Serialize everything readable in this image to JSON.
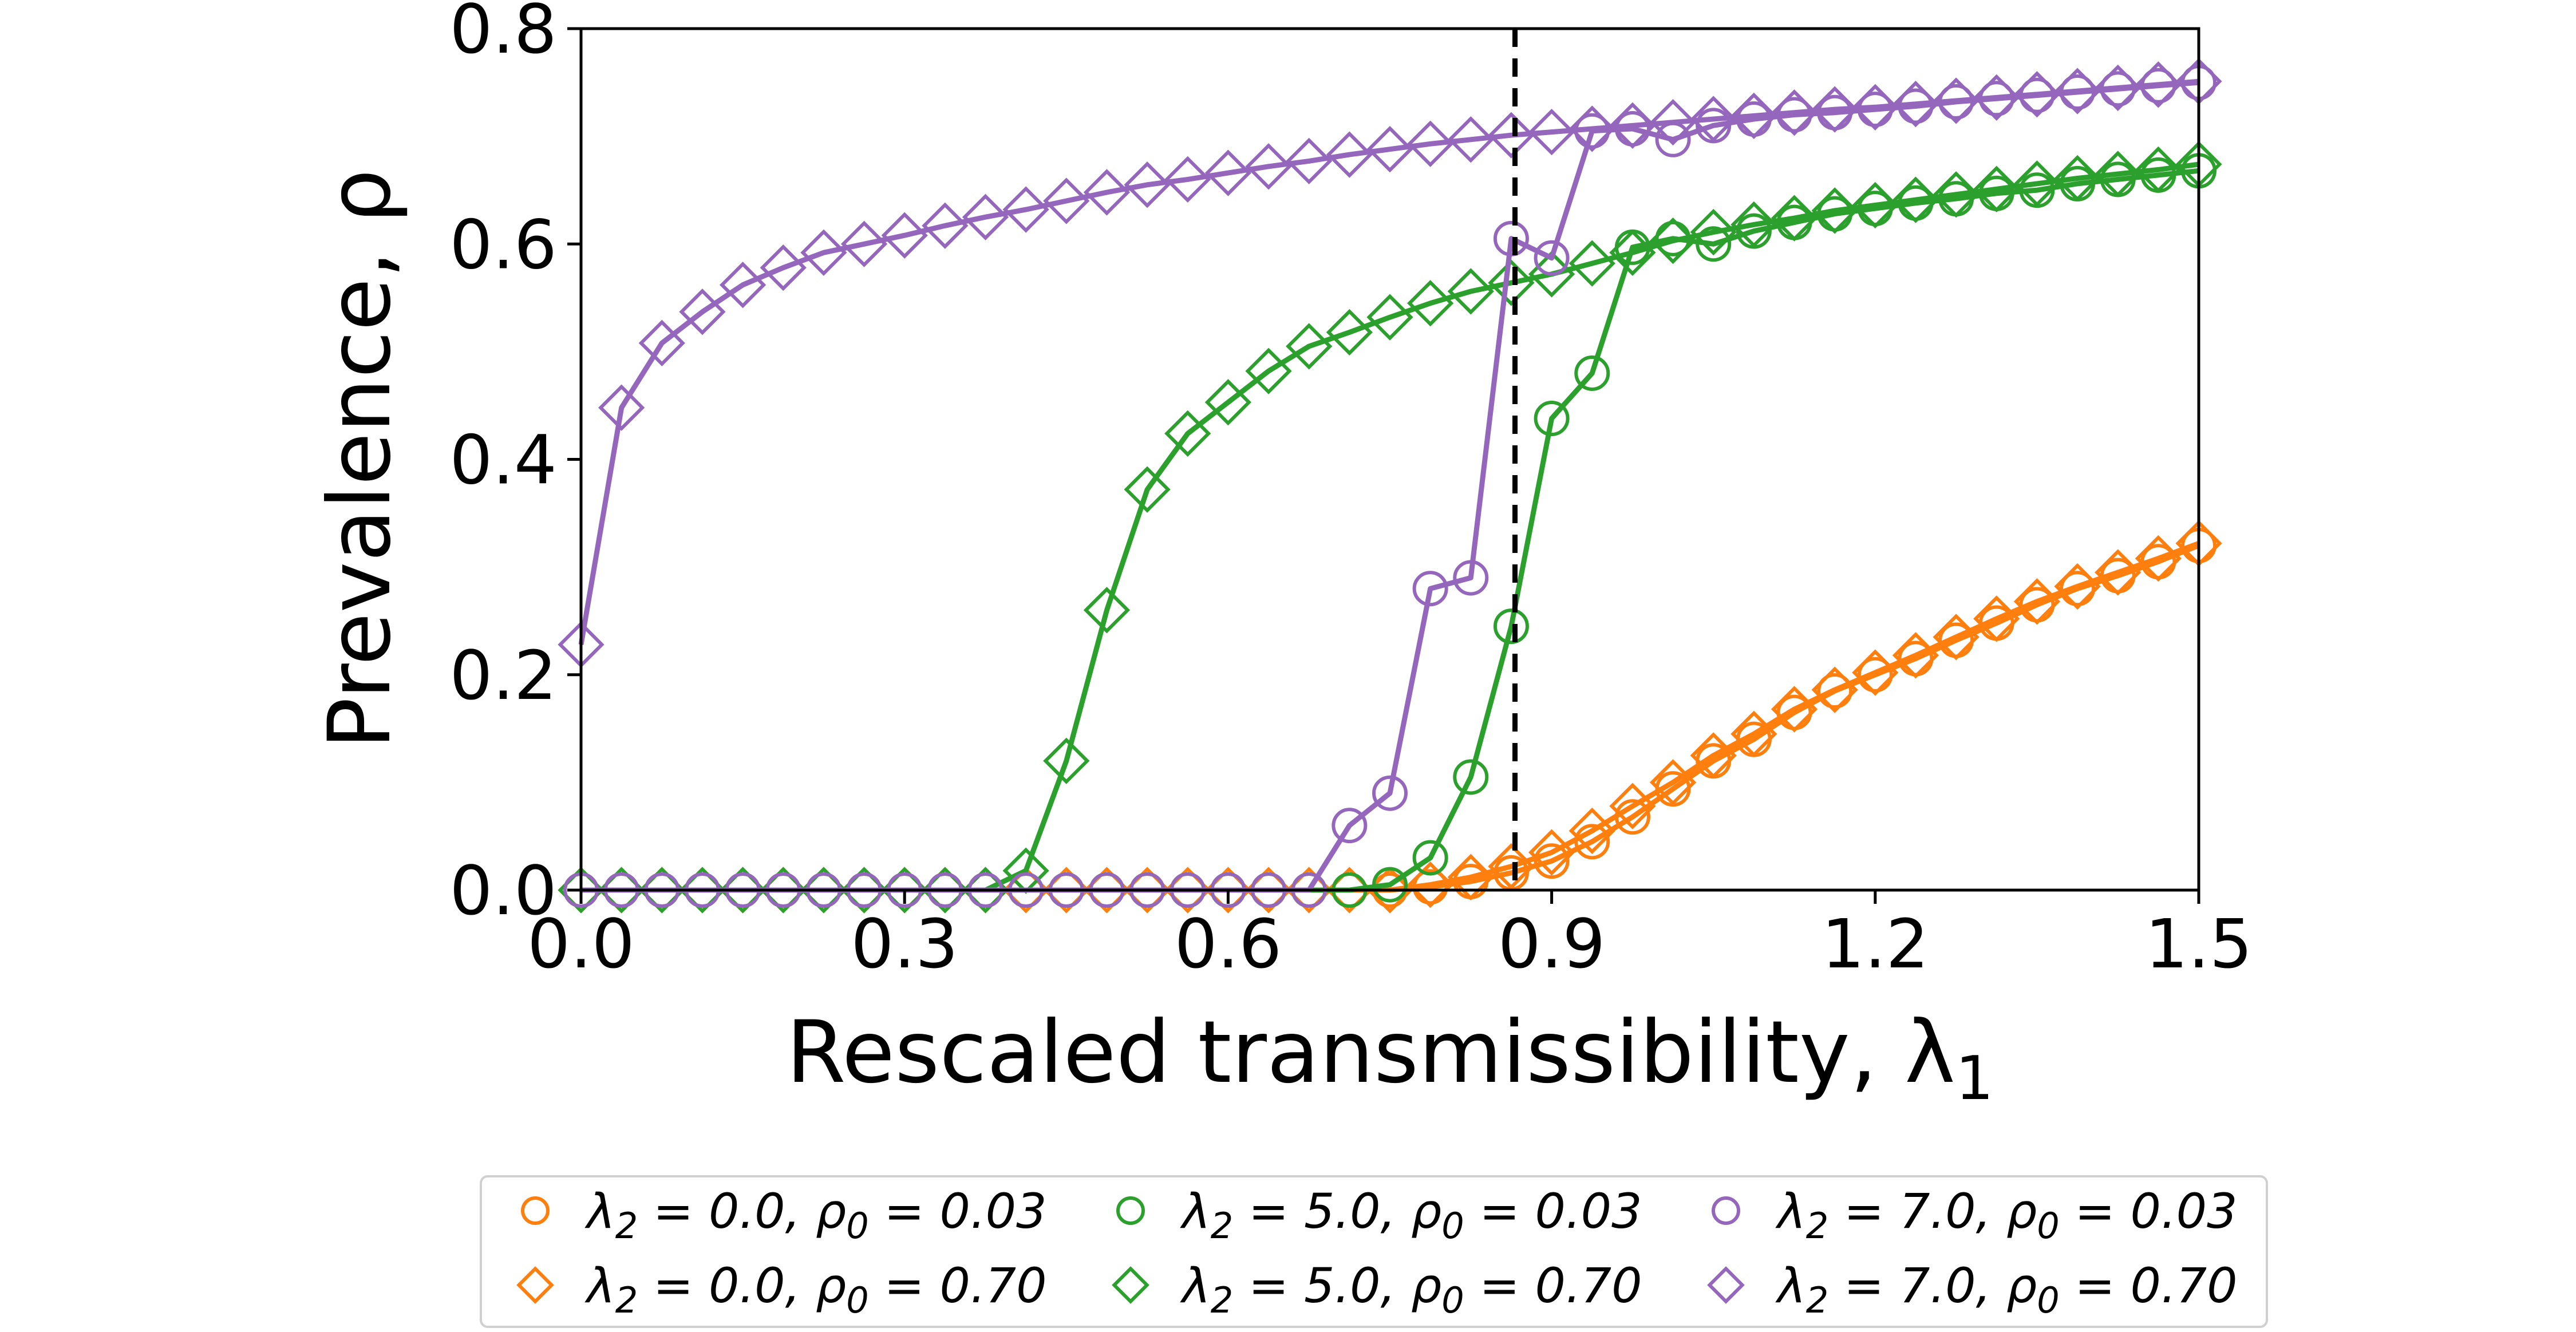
{
  "chart_data": {
    "type": "line",
    "title": "",
    "xlabel": "Rescaled transmissibility, λ",
    "xlabel_sub": "1",
    "ylabel": "Prevalence, ρ",
    "xlim": [
      0.0,
      1.5
    ],
    "ylim": [
      0.0,
      0.8
    ],
    "xticks": [
      0.0,
      0.3,
      0.6,
      0.9,
      1.2,
      1.5
    ],
    "xtick_labels": [
      "0.0",
      "0.3",
      "0.6",
      "0.9",
      "1.2",
      "1.5"
    ],
    "yticks": [
      0.0,
      0.2,
      0.4,
      0.6,
      0.8
    ],
    "ytick_labels": [
      "0.0",
      "0.2",
      "0.4",
      "0.6",
      "0.8"
    ],
    "grid": false,
    "legend_position": "bottom-center",
    "reference_lines": [
      {
        "orientation": "vertical",
        "x": 0.866,
        "style": "dashed",
        "color": "#000000"
      }
    ],
    "x": [
      0.0,
      0.0375,
      0.075,
      0.1125,
      0.15,
      0.1875,
      0.225,
      0.2625,
      0.3,
      0.3375,
      0.375,
      0.4125,
      0.45,
      0.4875,
      0.525,
      0.5625,
      0.6,
      0.6375,
      0.675,
      0.7125,
      0.75,
      0.7875,
      0.825,
      0.8625,
      0.9,
      0.9375,
      0.975,
      1.0125,
      1.05,
      1.0875,
      1.125,
      1.1625,
      1.2,
      1.2375,
      1.275,
      1.3125,
      1.35,
      1.3875,
      1.425,
      1.4625,
      1.5
    ],
    "series": [
      {
        "name": "λ2 = 0.0, ρ0 = 0.03",
        "label_parts": {
          "l": "λ",
          "lsub": "2",
          "lval": " = 0.0, ",
          "r": "ρ",
          "rsub": "0",
          "rval": " = 0.03"
        },
        "color": "#ff7f0e",
        "marker": "circle",
        "values": [
          0.0,
          0.0,
          0.0,
          0.0,
          0.0,
          0.0,
          0.0,
          0.0,
          0.0,
          0.0,
          0.0,
          0.0,
          0.0,
          0.0,
          0.0,
          0.0,
          0.0,
          0.0,
          0.0,
          0.0,
          0.0,
          0.003,
          0.008,
          0.016,
          0.027,
          0.045,
          0.068,
          0.094,
          0.12,
          0.14,
          0.165,
          0.185,
          0.2,
          0.215,
          0.232,
          0.248,
          0.265,
          0.28,
          0.292,
          0.305,
          0.32
        ]
      },
      {
        "name": "λ2 = 0.0, ρ0 = 0.70",
        "label_parts": {
          "l": "λ",
          "lsub": "2",
          "lval": " = 0.0, ",
          "r": "ρ",
          "rsub": "0",
          "rval": " = 0.70"
        },
        "color": "#ff7f0e",
        "marker": "diamond",
        "values": [
          0.0,
          0.0,
          0.0,
          0.0,
          0.0,
          0.0,
          0.0,
          0.0,
          0.0,
          0.0,
          0.0,
          0.0,
          0.0,
          0.0,
          0.0,
          0.0,
          0.0,
          0.0,
          0.0,
          0.0,
          0.0,
          0.005,
          0.012,
          0.022,
          0.035,
          0.055,
          0.078,
          0.1,
          0.125,
          0.145,
          0.168,
          0.186,
          0.202,
          0.218,
          0.235,
          0.252,
          0.268,
          0.282,
          0.295,
          0.308,
          0.322
        ]
      },
      {
        "name": "λ2 = 5.0, ρ0 = 0.03",
        "label_parts": {
          "l": "λ",
          "lsub": "2",
          "lval": " = 5.0, ",
          "r": "ρ",
          "rsub": "0",
          "rval": " = 0.03"
        },
        "color": "#2ca02c",
        "marker": "circle",
        "values": [
          0.0,
          0.0,
          0.0,
          0.0,
          0.0,
          0.0,
          0.0,
          0.0,
          0.0,
          0.0,
          0.0,
          0.0,
          0.0,
          0.0,
          0.0,
          0.0,
          0.0,
          0.0,
          0.0,
          0.0,
          0.005,
          0.03,
          0.105,
          0.245,
          0.438,
          0.48,
          0.597,
          0.605,
          0.6,
          0.612,
          0.62,
          0.628,
          0.633,
          0.638,
          0.642,
          0.647,
          0.65,
          0.656,
          0.66,
          0.664,
          0.668
        ]
      },
      {
        "name": "λ2 = 5.0, ρ0 = 0.70",
        "label_parts": {
          "l": "λ",
          "lsub": "2",
          "lval": " = 5.0, ",
          "r": "ρ",
          "rsub": "0",
          "rval": " = 0.70"
        },
        "color": "#2ca02c",
        "marker": "diamond",
        "values": [
          0.0,
          0.0,
          0.0,
          0.0,
          0.0,
          0.0,
          0.0,
          0.0,
          0.0,
          0.0,
          0.0,
          0.018,
          0.12,
          0.26,
          0.372,
          0.424,
          0.453,
          0.482,
          0.505,
          0.518,
          0.532,
          0.545,
          0.556,
          0.564,
          0.572,
          0.582,
          0.592,
          0.603,
          0.611,
          0.618,
          0.624,
          0.631,
          0.636,
          0.641,
          0.646,
          0.651,
          0.656,
          0.661,
          0.665,
          0.669,
          0.674
        ]
      },
      {
        "name": "λ2 = 7.0, ρ0 = 0.03",
        "label_parts": {
          "l": "λ",
          "lsub": "2",
          "lval": " = 7.0, ",
          "r": "ρ",
          "rsub": "0",
          "rval": " = 0.03"
        },
        "color": "#9467bd",
        "marker": "circle",
        "values": [
          0.0,
          0.0,
          0.0,
          0.0,
          0.0,
          0.0,
          0.0,
          0.0,
          0.0,
          0.0,
          0.0,
          0.0,
          0.0,
          0.0,
          0.0,
          0.0,
          0.0,
          0.0,
          0.0,
          0.06,
          0.09,
          0.28,
          0.29,
          0.605,
          0.587,
          0.705,
          0.707,
          0.697,
          0.71,
          0.716,
          0.72,
          0.722,
          0.725,
          0.728,
          0.732,
          0.735,
          0.738,
          0.741,
          0.744,
          0.747,
          0.75
        ]
      },
      {
        "name": "λ2 = 7.0, ρ0 = 0.70",
        "label_parts": {
          "l": "λ",
          "lsub": "2",
          "lval": " = 7.0, ",
          "r": "ρ",
          "rsub": "0",
          "rval": " = 0.70"
        },
        "color": "#9467bd",
        "marker": "diamond",
        "values": [
          0.228,
          0.448,
          0.508,
          0.537,
          0.562,
          0.578,
          0.592,
          0.6,
          0.608,
          0.617,
          0.625,
          0.632,
          0.64,
          0.648,
          0.655,
          0.66,
          0.666,
          0.672,
          0.677,
          0.683,
          0.688,
          0.693,
          0.697,
          0.701,
          0.704,
          0.707,
          0.71,
          0.713,
          0.716,
          0.719,
          0.722,
          0.725,
          0.727,
          0.73,
          0.733,
          0.736,
          0.739,
          0.742,
          0.745,
          0.748,
          0.751
        ]
      }
    ]
  }
}
